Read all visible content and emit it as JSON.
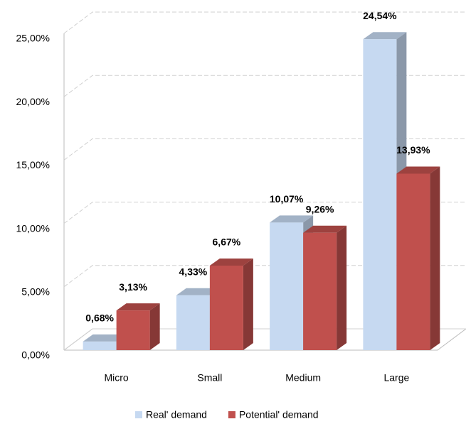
{
  "chart_data": {
    "type": "bar3d",
    "categories": [
      "Micro",
      "Small",
      "Medium",
      "Large"
    ],
    "series": [
      {
        "name": "Real' demand",
        "color": "#c6d9f1",
        "values": [
          0.68,
          4.33,
          10.07,
          24.54
        ],
        "value_labels": [
          "0,68%",
          "4,33%",
          "10,07%",
          "24,54%"
        ]
      },
      {
        "name": "Potential' demand",
        "color": "#c0504d",
        "values": [
          3.13,
          6.67,
          9.26,
          13.93
        ],
        "value_labels": [
          "3,13%",
          "6,67%",
          "9,26%",
          "13,93%"
        ]
      }
    ],
    "ylim": [
      0,
      25
    ],
    "yticks": [
      {
        "value": 0,
        "label": "0,00%"
      },
      {
        "value": 5,
        "label": "5,00%"
      },
      {
        "value": 10,
        "label": "10,00%"
      },
      {
        "value": 15,
        "label": "15,00%"
      },
      {
        "value": 20,
        "label": "20,00%"
      },
      {
        "value": 25,
        "label": "25,00%"
      }
    ],
    "grid": true,
    "legend": "bottom"
  }
}
